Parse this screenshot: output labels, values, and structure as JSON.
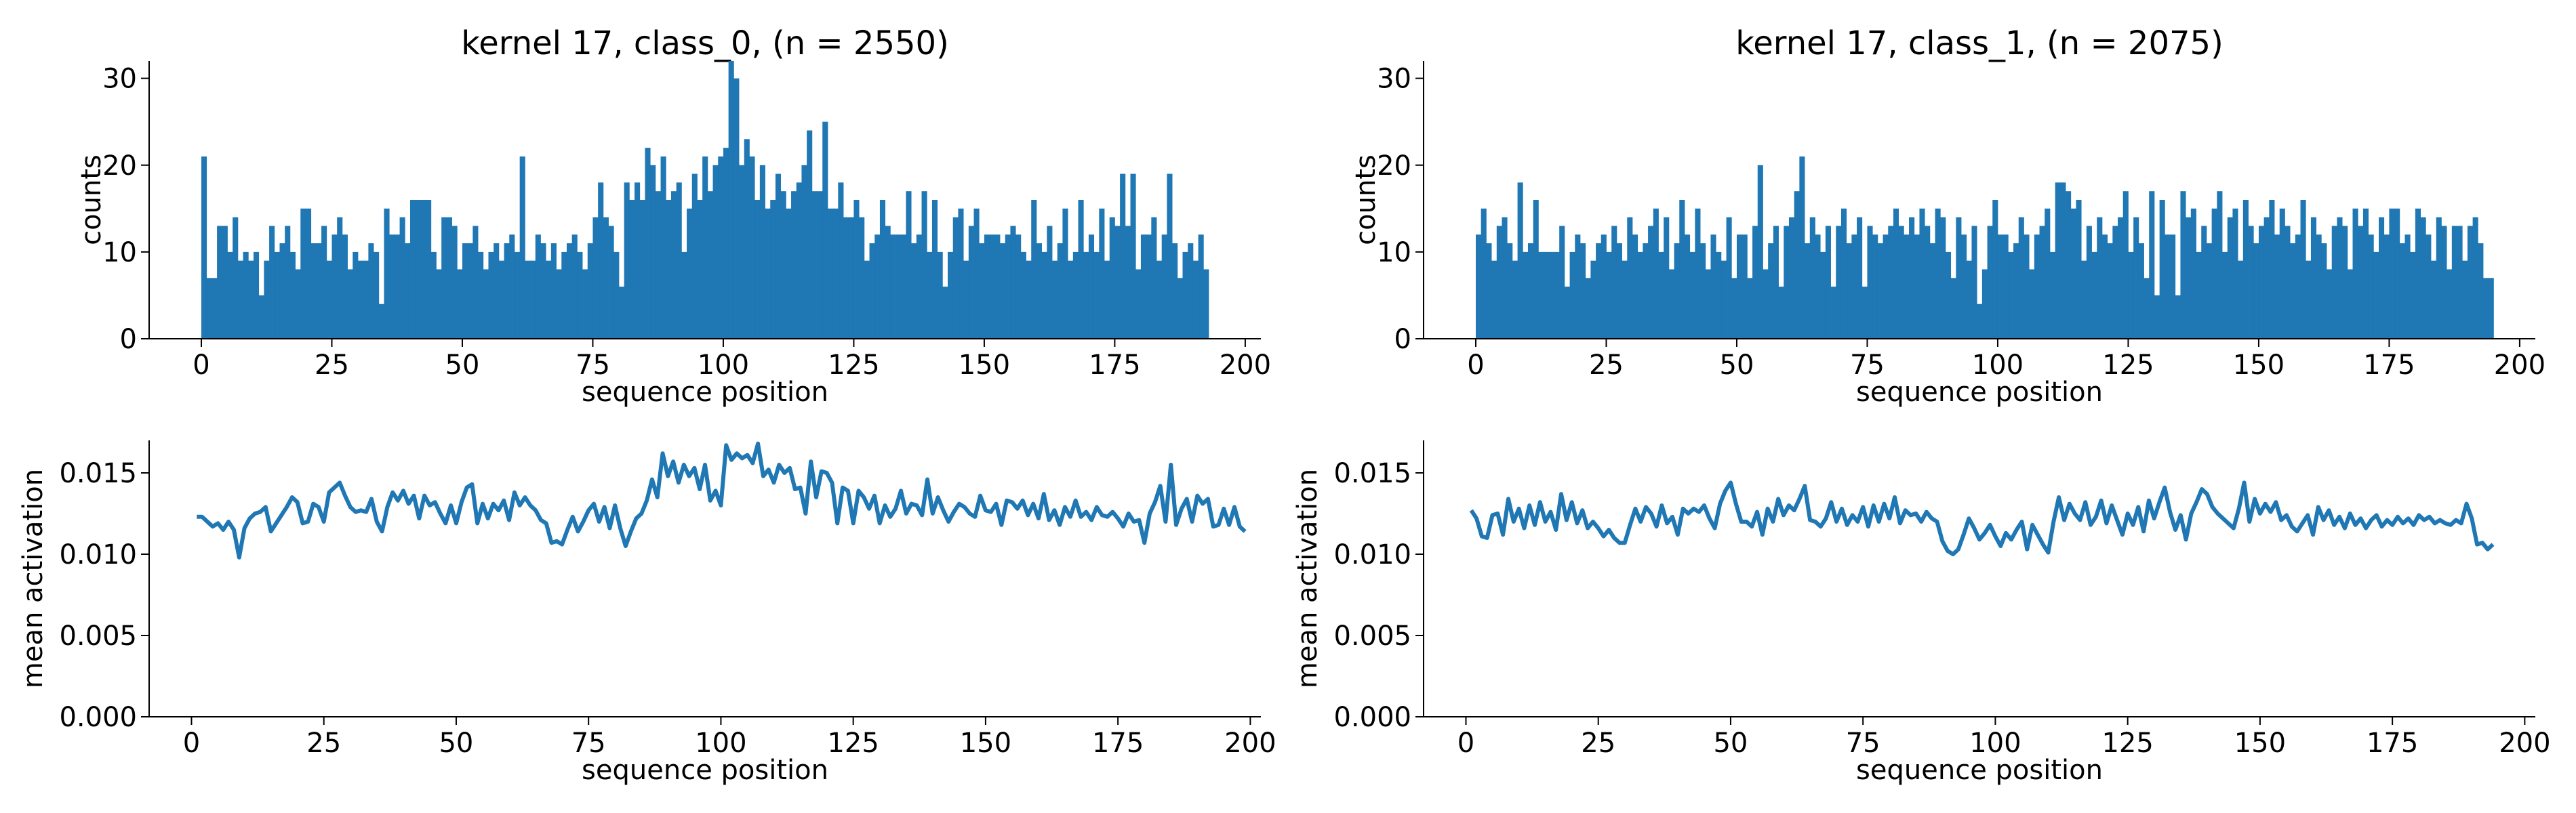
{
  "chart_data": [
    {
      "type": "bar",
      "title": "kernel 17, class_0, (n = 2550)",
      "xlabel": "sequence position",
      "ylabel": "counts",
      "xlim": [
        -10,
        203
      ],
      "ylim": [
        0,
        32
      ],
      "xticks": [
        0,
        25,
        50,
        75,
        100,
        125,
        150,
        175,
        200
      ],
      "yticks": [
        0,
        10,
        20,
        30
      ],
      "bin_start": 0,
      "bin_width": 1,
      "color": "#1f77b4",
      "values": [
        21,
        7,
        7,
        13,
        13,
        10,
        14,
        9,
        10,
        9,
        10,
        5,
        9,
        13,
        10,
        11,
        13,
        10,
        8,
        15,
        15,
        11,
        11,
        13,
        9,
        12,
        14,
        12,
        8,
        10,
        9,
        9,
        11,
        10,
        4,
        15,
        12,
        12,
        14,
        11,
        16,
        16,
        16,
        16,
        10,
        8,
        14,
        14,
        13,
        8,
        11,
        11,
        13,
        10,
        8,
        10,
        11,
        9,
        11,
        12,
        10,
        21,
        9,
        9,
        12,
        11,
        9,
        11,
        8,
        10,
        11,
        12,
        10,
        8,
        11,
        14,
        18,
        14,
        13,
        10,
        6,
        18,
        16,
        18,
        16,
        22,
        20,
        17,
        21,
        16,
        17,
        18,
        10,
        15,
        19,
        16,
        21,
        17,
        20,
        21,
        22,
        32,
        30,
        20,
        23,
        21,
        16,
        20,
        15,
        16,
        19,
        17,
        15,
        17,
        18,
        20,
        24,
        17,
        17,
        25,
        15,
        15,
        18,
        14,
        14,
        16,
        14,
        9,
        11,
        12,
        16,
        13,
        12,
        12,
        12,
        17,
        11,
        12,
        17,
        10,
        16,
        10,
        6,
        10,
        14,
        15,
        9,
        13,
        15,
        11,
        12,
        12,
        12,
        11,
        12,
        13,
        12,
        10,
        9,
        16,
        11,
        10,
        13,
        9,
        11,
        15,
        9,
        10,
        16,
        10,
        12,
        10,
        15,
        9,
        14,
        13,
        19,
        13,
        19,
        8,
        12,
        12,
        14,
        9,
        12,
        19,
        11,
        7,
        10,
        11,
        9,
        12,
        8
      ],
      "bar_color": "#1f77b4"
    },
    {
      "type": "bar",
      "title": "kernel 17, class_1, (n = 2075)",
      "xlabel": "sequence position",
      "ylabel": "counts",
      "xlim": [
        -10,
        203
      ],
      "ylim": [
        0,
        32
      ],
      "xticks": [
        0,
        25,
        50,
        75,
        100,
        125,
        150,
        175,
        200
      ],
      "yticks": [
        0,
        10,
        20,
        30
      ],
      "bin_start": 0,
      "bin_width": 1,
      "color": "#1f77b4",
      "values": [
        12,
        15,
        11,
        9,
        13,
        14,
        11,
        9,
        18,
        10,
        11,
        16,
        10,
        10,
        10,
        10,
        13,
        6,
        10,
        12,
        11,
        7,
        9,
        11,
        12,
        10,
        13,
        11,
        9,
        14,
        12,
        10,
        11,
        13,
        15,
        10,
        14,
        8,
        11,
        16,
        12,
        10,
        15,
        11,
        8,
        12,
        10,
        9,
        14,
        7,
        12,
        12,
        7,
        13,
        20,
        8,
        11,
        13,
        6,
        13,
        14,
        17,
        21,
        11,
        14,
        12,
        10,
        13,
        6,
        13,
        15,
        11,
        12,
        14,
        6,
        13,
        12,
        11,
        12,
        13,
        15,
        13,
        12,
        14,
        12,
        15,
        13,
        11,
        15,
        14,
        10,
        7,
        14,
        12,
        9,
        13,
        4,
        8,
        13,
        16,
        12,
        12,
        10,
        11,
        14,
        12,
        8,
        12,
        13,
        15,
        10,
        18,
        18,
        17,
        15,
        16,
        9,
        13,
        10,
        14,
        12,
        11,
        13,
        14,
        17,
        10,
        14,
        11,
        7,
        17,
        5,
        16,
        12,
        12,
        5,
        17,
        14,
        15,
        10,
        13,
        11,
        15,
        17,
        10,
        14,
        15,
        9,
        16,
        13,
        11,
        13,
        14,
        16,
        12,
        15,
        13,
        11,
        12,
        16,
        9,
        14,
        12,
        11,
        8,
        13,
        14,
        13,
        8,
        15,
        13,
        15,
        12,
        10,
        14,
        12,
        15,
        15,
        11,
        12,
        10,
        15,
        14,
        12,
        9,
        14,
        13,
        8,
        13,
        13,
        9,
        13,
        14,
        11,
        7,
        7
      ],
      "bar_color": "#1f77b4"
    },
    {
      "type": "line",
      "xlabel": "sequence position",
      "ylabel": "mean activation",
      "xlim": [
        -8,
        202
      ],
      "ylim": [
        0,
        0.017
      ],
      "xticks": [
        0,
        25,
        50,
        75,
        100,
        125,
        150,
        175,
        200
      ],
      "yticks": [
        0.0,
        0.005,
        0.01,
        0.015
      ],
      "ytick_labels": [
        "0.000",
        "0.005",
        "0.010",
        "0.015"
      ],
      "x_start": 1,
      "x_step": 1,
      "color": "#1f77b4",
      "y": [
        0.0123,
        0.0123,
        0.012,
        0.0117,
        0.0119,
        0.0115,
        0.012,
        0.0115,
        0.0098,
        0.0116,
        0.0122,
        0.0125,
        0.0126,
        0.0129,
        0.0114,
        0.0119,
        0.0124,
        0.0129,
        0.0135,
        0.0132,
        0.0119,
        0.012,
        0.0131,
        0.0129,
        0.012,
        0.0138,
        0.0141,
        0.0144,
        0.0136,
        0.0129,
        0.0126,
        0.0127,
        0.0126,
        0.0134,
        0.012,
        0.0114,
        0.0129,
        0.0138,
        0.0133,
        0.0139,
        0.0131,
        0.0136,
        0.0122,
        0.0136,
        0.013,
        0.0132,
        0.0125,
        0.0119,
        0.013,
        0.0119,
        0.0132,
        0.0141,
        0.0143,
        0.0119,
        0.0131,
        0.0122,
        0.0131,
        0.0127,
        0.0133,
        0.0121,
        0.0138,
        0.013,
        0.0135,
        0.013,
        0.0127,
        0.0121,
        0.0119,
        0.0107,
        0.0108,
        0.0106,
        0.0115,
        0.0123,
        0.0114,
        0.012,
        0.0127,
        0.0131,
        0.012,
        0.0129,
        0.0116,
        0.013,
        0.0116,
        0.0105,
        0.0114,
        0.0122,
        0.0125,
        0.0133,
        0.0146,
        0.0135,
        0.0162,
        0.0148,
        0.0157,
        0.0144,
        0.0155,
        0.0148,
        0.0153,
        0.014,
        0.0155,
        0.0133,
        0.0139,
        0.013,
        0.0167,
        0.0158,
        0.0162,
        0.0159,
        0.0161,
        0.0156,
        0.0168,
        0.0148,
        0.0152,
        0.0144,
        0.0155,
        0.015,
        0.0153,
        0.014,
        0.0141,
        0.0125,
        0.0157,
        0.0135,
        0.0151,
        0.015,
        0.0144,
        0.0119,
        0.0141,
        0.0139,
        0.0119,
        0.0139,
        0.0135,
        0.0128,
        0.0136,
        0.0119,
        0.013,
        0.0123,
        0.0128,
        0.0139,
        0.0125,
        0.0131,
        0.013,
        0.0124,
        0.0146,
        0.0125,
        0.0135,
        0.0127,
        0.012,
        0.0126,
        0.0131,
        0.0129,
        0.0125,
        0.0123,
        0.0136,
        0.0127,
        0.0126,
        0.0131,
        0.0118,
        0.0133,
        0.0132,
        0.0128,
        0.0133,
        0.0124,
        0.0131,
        0.0122,
        0.0137,
        0.0121,
        0.0127,
        0.0118,
        0.0129,
        0.0123,
        0.0133,
        0.0123,
        0.0126,
        0.0121,
        0.0129,
        0.0124,
        0.0123,
        0.0126,
        0.0122,
        0.0117,
        0.0125,
        0.012,
        0.0121,
        0.0107,
        0.0125,
        0.0132,
        0.0142,
        0.012,
        0.0155,
        0.0118,
        0.0128,
        0.0134,
        0.012,
        0.0136,
        0.0131,
        0.0134,
        0.0117,
        0.0118,
        0.0128,
        0.0118,
        0.0129,
        0.0117,
        0.0114
      ],
      "y_count_note": ""
    },
    {
      "type": "line",
      "xlabel": "sequence position",
      "ylabel": "mean activation",
      "xlim": [
        -8,
        202
      ],
      "ylim": [
        0,
        0.017
      ],
      "xticks": [
        0,
        25,
        50,
        75,
        100,
        125,
        150,
        175,
        200
      ],
      "yticks": [
        0.0,
        0.005,
        0.01,
        0.015
      ],
      "ytick_labels": [
        "0.000",
        "0.005",
        "0.010",
        "0.015"
      ],
      "x_start": 1,
      "x_step": 1,
      "color": "#1f77b4",
      "y": [
        0.0127,
        0.0122,
        0.0111,
        0.011,
        0.0124,
        0.0125,
        0.0112,
        0.0134,
        0.012,
        0.0128,
        0.0116,
        0.013,
        0.0118,
        0.0132,
        0.012,
        0.0126,
        0.0115,
        0.0137,
        0.0121,
        0.0132,
        0.0119,
        0.0127,
        0.0116,
        0.012,
        0.0116,
        0.0111,
        0.0115,
        0.011,
        0.0107,
        0.0107,
        0.0118,
        0.0128,
        0.012,
        0.0129,
        0.0125,
        0.0117,
        0.013,
        0.0119,
        0.0123,
        0.0112,
        0.0128,
        0.0125,
        0.0128,
        0.0126,
        0.013,
        0.0122,
        0.0116,
        0.0131,
        0.0139,
        0.0144,
        0.0131,
        0.012,
        0.012,
        0.0117,
        0.0126,
        0.0112,
        0.0128,
        0.012,
        0.0134,
        0.0124,
        0.013,
        0.0127,
        0.0134,
        0.0142,
        0.0121,
        0.012,
        0.0117,
        0.0122,
        0.0132,
        0.012,
        0.0128,
        0.0118,
        0.0124,
        0.012,
        0.0129,
        0.0117,
        0.013,
        0.012,
        0.0131,
        0.0122,
        0.0135,
        0.0119,
        0.0127,
        0.0124,
        0.0125,
        0.012,
        0.0126,
        0.0122,
        0.012,
        0.0108,
        0.0102,
        0.01,
        0.0103,
        0.0112,
        0.0122,
        0.0116,
        0.0109,
        0.0113,
        0.0118,
        0.0111,
        0.0105,
        0.0113,
        0.0109,
        0.0115,
        0.012,
        0.0103,
        0.0118,
        0.0112,
        0.0106,
        0.0101,
        0.012,
        0.0135,
        0.0121,
        0.0131,
        0.0125,
        0.0121,
        0.0132,
        0.0118,
        0.0123,
        0.0133,
        0.0119,
        0.013,
        0.0121,
        0.0112,
        0.0125,
        0.0118,
        0.0129,
        0.0114,
        0.0133,
        0.0122,
        0.0132,
        0.0141,
        0.0126,
        0.0115,
        0.0124,
        0.0109,
        0.0125,
        0.0132,
        0.014,
        0.0137,
        0.0129,
        0.0125,
        0.0122,
        0.0119,
        0.0116,
        0.0128,
        0.0144,
        0.012,
        0.0134,
        0.0125,
        0.0131,
        0.0126,
        0.0132,
        0.0121,
        0.0124,
        0.0117,
        0.0114,
        0.0119,
        0.0124,
        0.0112,
        0.0129,
        0.0121,
        0.0127,
        0.0118,
        0.0123,
        0.0116,
        0.0125,
        0.0118,
        0.0122,
        0.0116,
        0.0121,
        0.0124,
        0.0117,
        0.0121,
        0.0118,
        0.0123,
        0.0119,
        0.0122,
        0.0118,
        0.0124,
        0.0121,
        0.0123,
        0.0119,
        0.0121,
        0.0119,
        0.0118,
        0.0121,
        0.0119,
        0.0131,
        0.0122,
        0.0106,
        0.0107,
        0.0103,
        0.0106
      ]
    }
  ]
}
